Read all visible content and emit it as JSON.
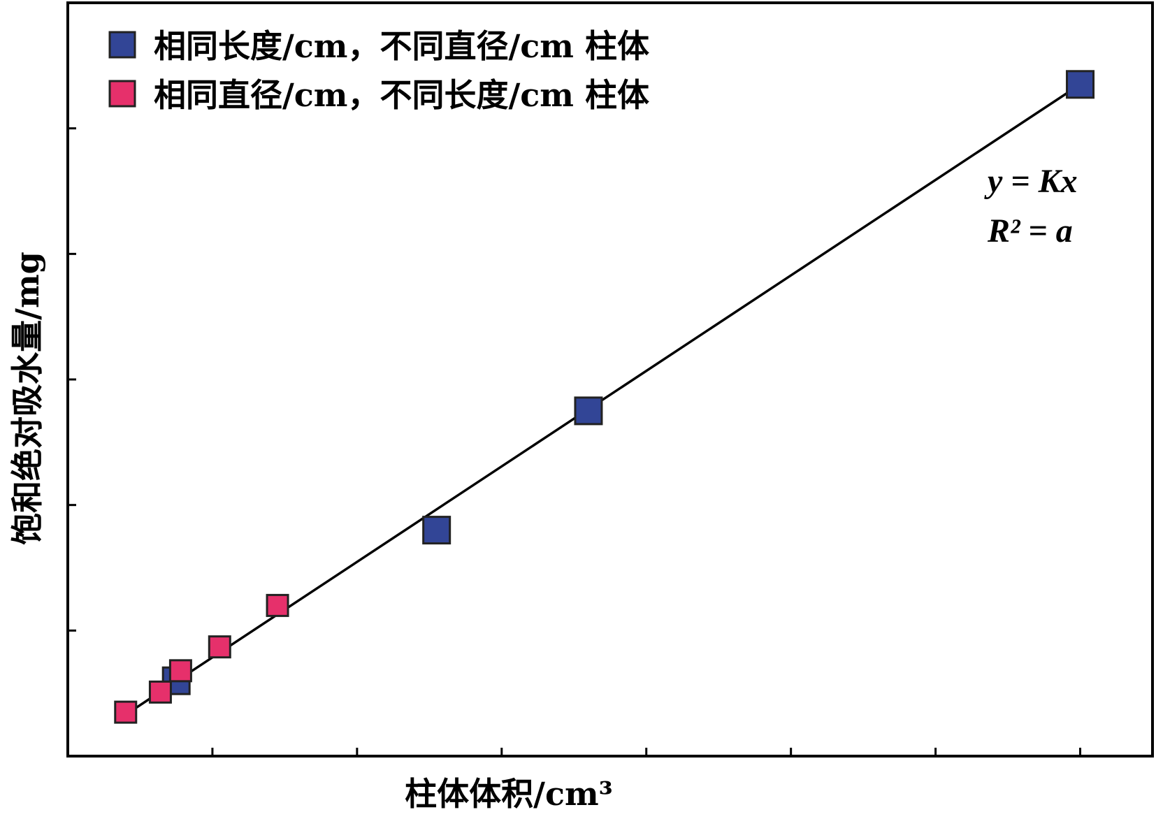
{
  "chart_data": {
    "type": "scatter",
    "title": "",
    "xlabel": "柱体体积/cm³",
    "ylabel": "饱和绝对吸水量/mg",
    "xlim": [
      0,
      7.5
    ],
    "ylim": [
      0,
      6
    ],
    "x_tick_values": [
      1,
      2,
      3,
      4,
      5,
      6,
      7
    ],
    "y_tick_values": [
      1,
      2,
      3,
      4,
      5
    ],
    "tick_labels_shown": false,
    "grid": false,
    "legend_position": "top-left",
    "series": [
      {
        "name": "相同长度/cm，不同直径/cm 柱体",
        "color": "#324596",
        "marker": "square",
        "x": [
          0.75,
          2.55,
          3.6,
          7.0
        ],
        "y": [
          0.6,
          1.8,
          2.75,
          5.35
        ]
      },
      {
        "name": "相同直径/cm，不同长度/cm 柱体",
        "color": "#e6306b",
        "marker": "square",
        "x": [
          0.4,
          0.64,
          0.78,
          1.05,
          1.45
        ],
        "y": [
          0.35,
          0.51,
          0.68,
          0.87,
          1.2
        ]
      }
    ],
    "fit_line": {
      "x": [
        0.4,
        7.0
      ],
      "y": [
        0.33,
        5.35
      ],
      "color": "#000000"
    },
    "annotations": [
      "y = Kx",
      "R² = a"
    ]
  }
}
